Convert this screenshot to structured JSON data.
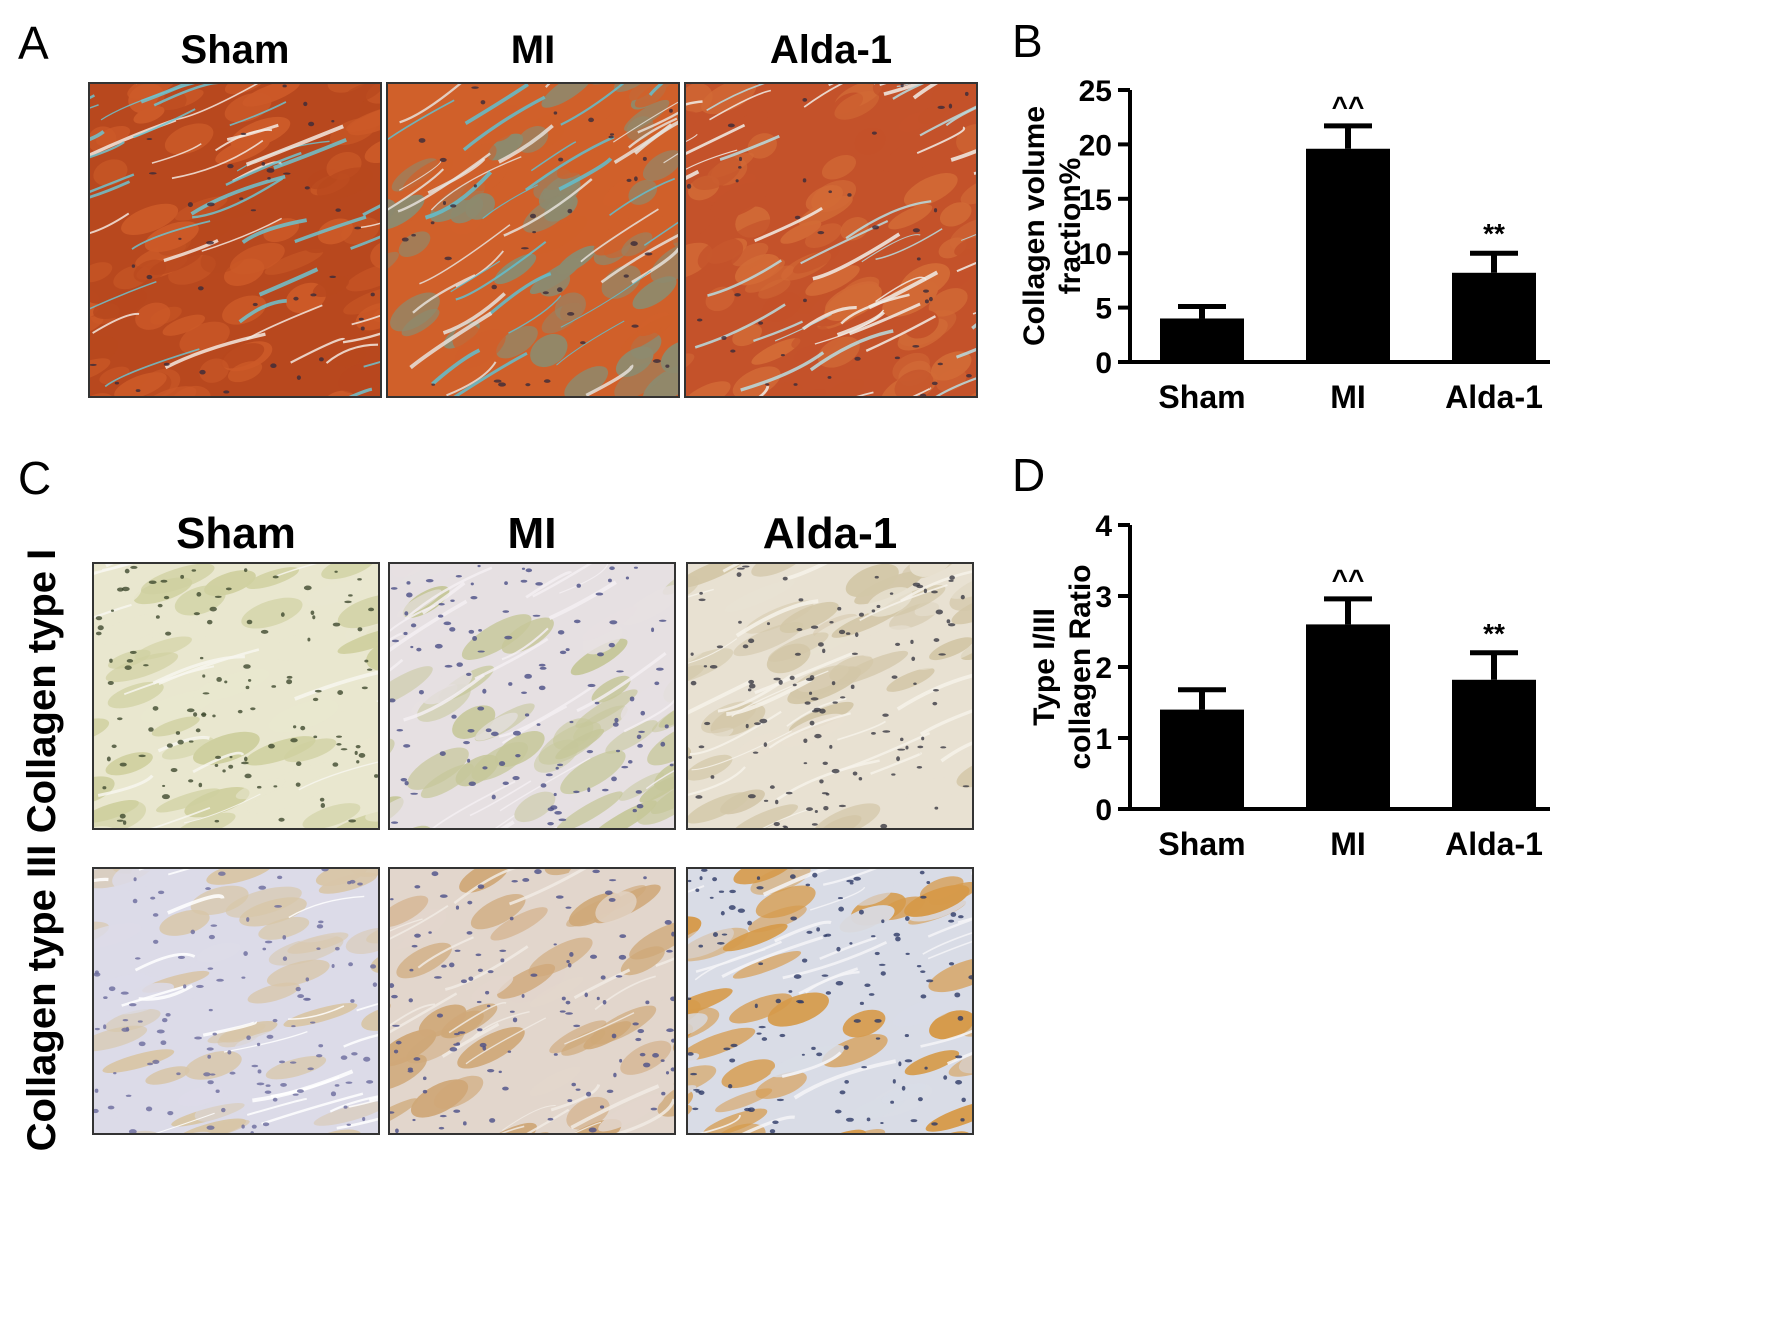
{
  "panels": {
    "A": {
      "letter": "A",
      "columns": [
        "Sham",
        "MI",
        "Alda-1"
      ]
    },
    "B": {
      "letter": "B"
    },
    "C": {
      "letter": "C",
      "columns": [
        "Sham",
        "MI",
        "Alda-1"
      ],
      "rows": [
        "Collagen type I",
        "Collagen type III"
      ]
    },
    "D": {
      "letter": "D"
    }
  },
  "images": {
    "masson": [
      {
        "group": "Sham",
        "stain": "Masson trichrome",
        "palette": [
          "#b8481e",
          "#cc5a28",
          "#6ec3cf",
          "#f2e9e0"
        ]
      },
      {
        "group": "MI",
        "stain": "Masson trichrome",
        "palette": [
          "#d0602a",
          "#8d8a6e",
          "#62bfcf",
          "#e6e2dc"
        ]
      },
      {
        "group": "Alda-1",
        "stain": "Masson trichrome",
        "palette": [
          "#c4522a",
          "#d26a36",
          "#b8dde2",
          "#f1ede8"
        ]
      }
    ],
    "ihc": [
      {
        "group": "Sham",
        "row": "Collagen type I",
        "palette": [
          "#e9e7cf",
          "#cfd0a0",
          "#3f4a2e",
          "#f7f6ee"
        ]
      },
      {
        "group": "MI",
        "row": "Collagen type I",
        "palette": [
          "#e6e0e2",
          "#c6c79a",
          "#4a4e86",
          "#f3eff2"
        ]
      },
      {
        "group": "Alda-1",
        "row": "Collagen type I",
        "palette": [
          "#e8e1d2",
          "#d3c7a8",
          "#3a3a44",
          "#f6f2ea"
        ]
      },
      {
        "group": "Sham",
        "row": "Collagen type III",
        "palette": [
          "#dcdbe8",
          "#d8c6a8",
          "#6a6a9c",
          "#ffffff"
        ]
      },
      {
        "group": "MI",
        "row": "Collagen type III",
        "palette": [
          "#e2d6cc",
          "#cfa878",
          "#4b4f88",
          "#f1ebe4"
        ]
      },
      {
        "group": "Alda-1",
        "row": "Collagen type III",
        "palette": [
          "#d9dce6",
          "#d69a4a",
          "#2d3a66",
          "#f5f4f7"
        ]
      }
    ]
  },
  "chart_data": [
    {
      "panel": "B",
      "type": "bar",
      "categories": [
        "Sham",
        "MI",
        "Alda-1"
      ],
      "values": [
        4.0,
        19.6,
        8.2
      ],
      "errors": [
        1.1,
        2.1,
        1.8
      ],
      "annotations": [
        "",
        "^^",
        "**"
      ],
      "ylabel_lines": [
        "Collagen volume",
        "fraction%"
      ],
      "xlabel": "",
      "ylim": [
        0,
        25
      ],
      "yticks": [
        0,
        5,
        10,
        15,
        20,
        25
      ],
      "bar_color": "#000000",
      "grid": false
    },
    {
      "panel": "D",
      "type": "bar",
      "categories": [
        "Sham",
        "MI",
        "Alda-1"
      ],
      "values": [
        1.4,
        2.6,
        1.82
      ],
      "errors": [
        0.28,
        0.36,
        0.38
      ],
      "annotations": [
        "",
        "^^",
        "**"
      ],
      "ylabel_lines": [
        "Type I/III",
        "collagen Ratio"
      ],
      "xlabel": "",
      "ylim": [
        0,
        4
      ],
      "yticks": [
        0,
        1,
        2,
        3,
        4
      ],
      "bar_color": "#000000",
      "grid": false
    }
  ]
}
